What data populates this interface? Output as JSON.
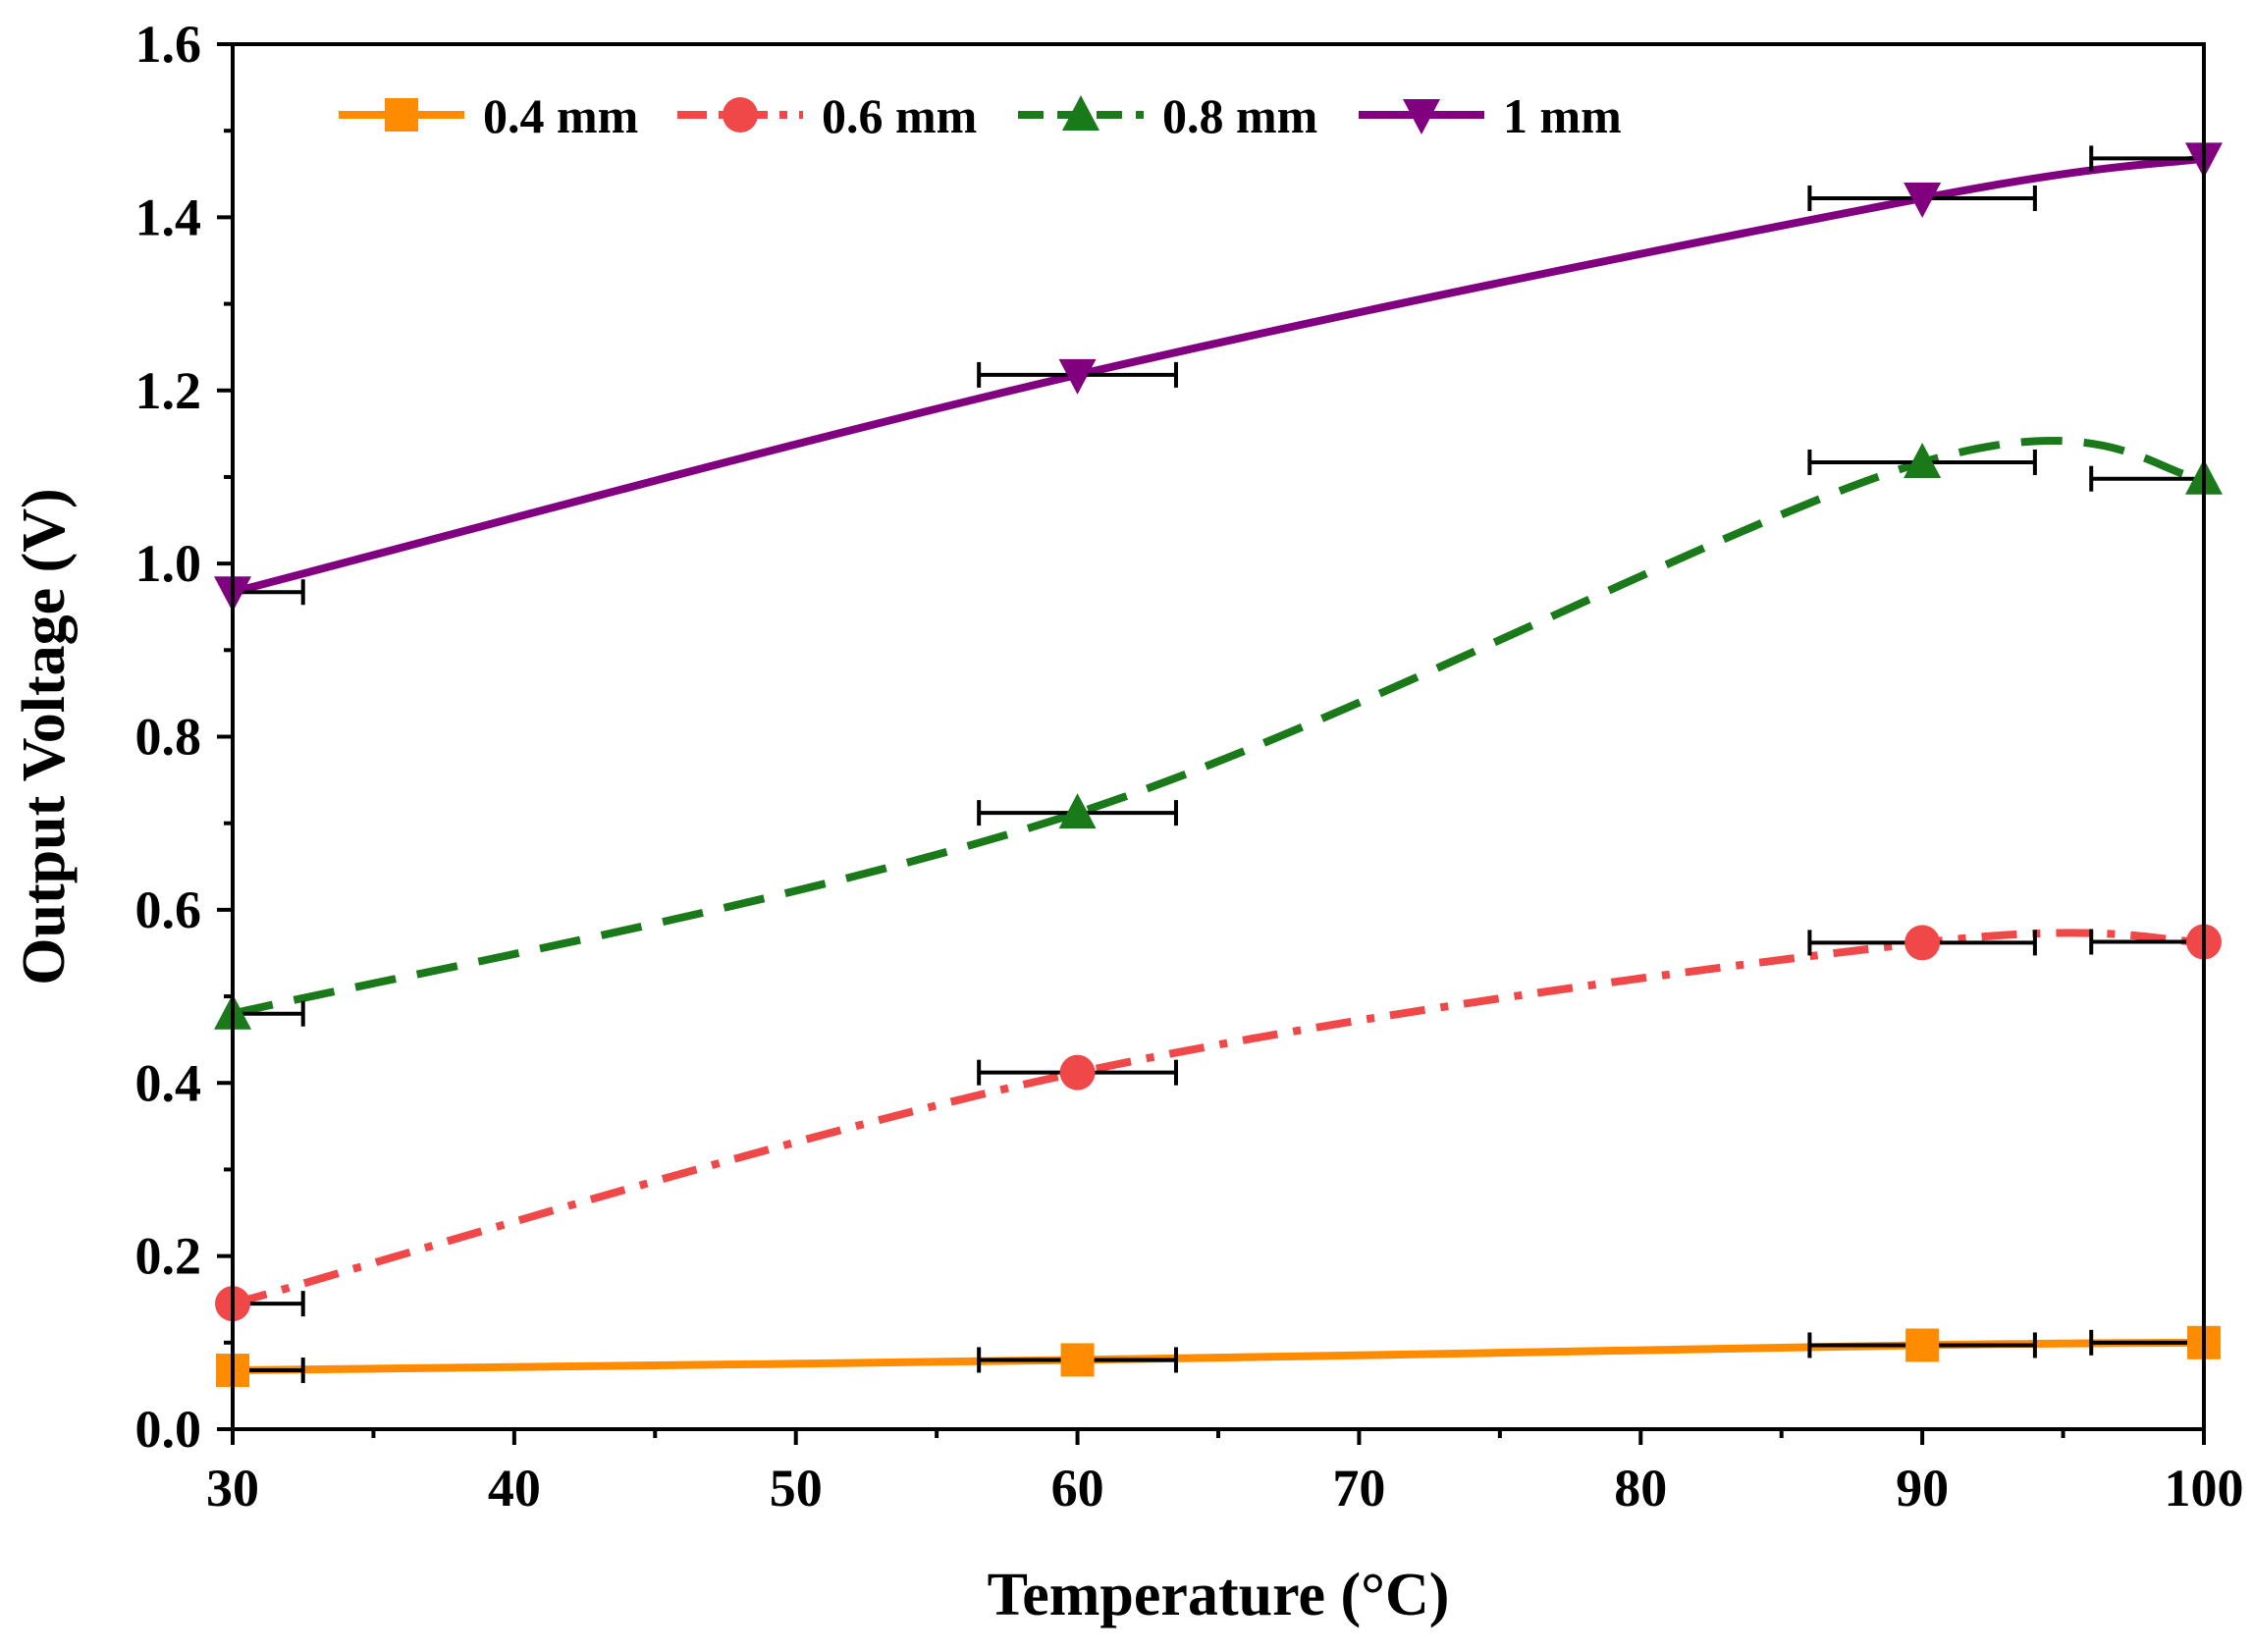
{
  "chart_data": {
    "type": "line",
    "xlabel": "Temperature (°C)",
    "ylabel": "Output Voltage (V)",
    "xlim": [
      30,
      100
    ],
    "ylim": [
      0,
      1.6
    ],
    "xticks": [
      30,
      40,
      50,
      60,
      70,
      80,
      90,
      100
    ],
    "yticks": [
      0.0,
      0.2,
      0.4,
      0.6,
      0.8,
      1.0,
      1.2,
      1.4,
      1.6
    ],
    "x": [
      30,
      60,
      90,
      100
    ],
    "legend_position": "top",
    "series": [
      {
        "name": "0.4 mm",
        "values": [
          0.068,
          0.08,
          0.097,
          0.1
        ],
        "xerr": [
          2.5,
          3.5,
          4.0,
          4.0
        ],
        "color": "#ff8c00",
        "marker": "square",
        "line_style": "solid"
      },
      {
        "name": "0.6 mm",
        "values": [
          0.145,
          0.412,
          0.562,
          0.563
        ],
        "xerr": [
          2.5,
          3.5,
          4.0,
          4.0
        ],
        "color": "#f04848",
        "marker": "circle",
        "line_style": "dashdot"
      },
      {
        "name": "0.8 mm",
        "values": [
          0.48,
          0.712,
          1.117,
          1.098
        ],
        "xerr": [
          2.5,
          3.5,
          4.0,
          4.0
        ],
        "color": "#1a7a1a",
        "marker": "triangle-up",
        "line_style": "dashed"
      },
      {
        "name": "1 mm",
        "values": [
          0.967,
          1.218,
          1.422,
          1.468
        ],
        "xerr": [
          2.5,
          3.5,
          4.0,
          4.0
        ],
        "color": "#800080",
        "marker": "triangle-down",
        "line_style": "solid"
      }
    ]
  }
}
